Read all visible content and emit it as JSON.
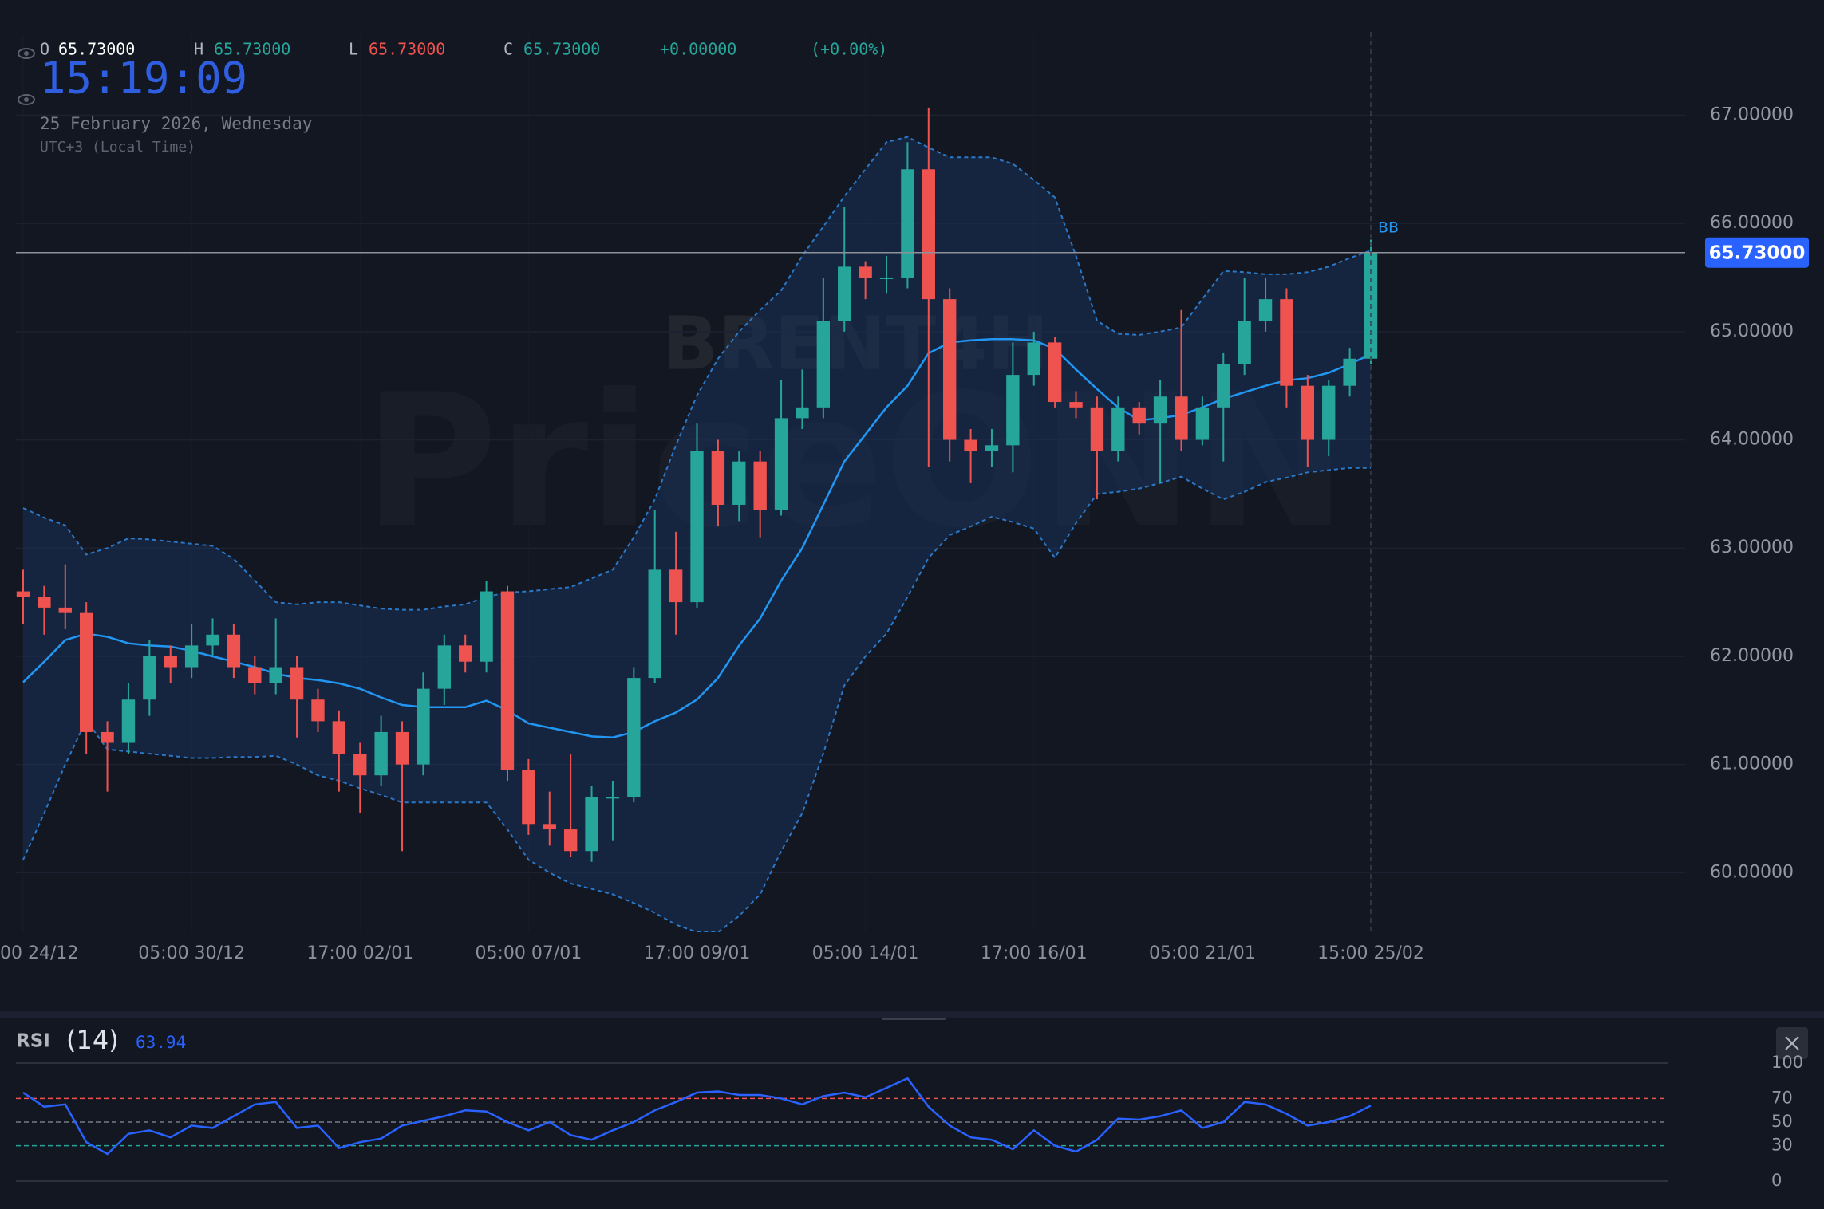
{
  "header": {
    "open_label": "O",
    "open": "65.73000",
    "high_label": "H",
    "high": "65.73000",
    "low_label": "L",
    "low": "65.73000",
    "close_label": "C",
    "close": "65.73000",
    "change": "+0.00000",
    "change_pct": "(+0.00%)",
    "time": "15:19:09",
    "date": "25 February 2026, Wednesday",
    "timezone": "UTC+3 (Local Time)"
  },
  "chart_data": [
    {
      "type": "candlestick",
      "watermark_symbol": "BRENT4H",
      "watermark_brand": "PriceONN",
      "categories": [
        "00 24/12",
        null,
        null,
        null,
        null,
        null,
        null,
        null,
        "05:00 30/12",
        null,
        null,
        null,
        null,
        null,
        null,
        null,
        "17:00 02/01",
        null,
        null,
        null,
        null,
        null,
        null,
        null,
        "05:00 07/01",
        null,
        null,
        null,
        null,
        null,
        null,
        null,
        "17:00 09/01",
        null,
        null,
        null,
        null,
        null,
        null,
        null,
        "05:00 14/01",
        null,
        null,
        null,
        null,
        null,
        null,
        null,
        "17:00 16/01",
        null,
        null,
        null,
        null,
        null,
        null,
        null,
        "05:00 21/01",
        null,
        null,
        null,
        null,
        null,
        null,
        null,
        "15:00 25/02"
      ],
      "open": [
        62.6,
        62.55,
        62.45,
        62.4,
        61.3,
        61.2,
        61.6,
        62.0,
        61.9,
        62.1,
        62.2,
        61.9,
        61.75,
        61.9,
        61.6,
        61.4,
        61.1,
        60.9,
        61.3,
        61.0,
        61.7,
        62.1,
        61.95,
        62.6,
        60.95,
        60.45,
        60.4,
        60.2,
        60.7,
        60.7,
        61.8,
        62.8,
        62.5,
        63.9,
        63.4,
        63.8,
        63.35,
        64.2,
        64.3,
        65.1,
        65.6,
        65.5,
        65.5,
        66.5,
        65.3,
        64.0,
        63.9,
        63.95,
        64.6,
        64.9,
        64.35,
        64.3,
        63.9,
        64.3,
        64.15,
        64.4,
        64.0,
        64.3,
        64.7,
        65.1,
        65.3,
        64.5,
        64.0,
        64.5,
        64.75
      ],
      "high": [
        62.8,
        62.65,
        62.85,
        62.5,
        61.4,
        61.75,
        62.15,
        62.1,
        62.3,
        62.35,
        62.3,
        62.0,
        62.35,
        62.0,
        61.7,
        61.5,
        61.2,
        61.45,
        61.4,
        61.85,
        62.2,
        62.2,
        62.7,
        62.65,
        61.05,
        60.75,
        61.1,
        60.8,
        60.85,
        61.9,
        63.35,
        63.15,
        64.15,
        64.0,
        63.9,
        63.9,
        64.55,
        64.65,
        65.5,
        66.15,
        65.65,
        65.7,
        66.75,
        67.07,
        65.4,
        64.1,
        64.1,
        64.9,
        65.0,
        64.95,
        64.45,
        64.4,
        64.4,
        64.35,
        64.55,
        65.2,
        64.4,
        64.8,
        65.5,
        65.5,
        65.4,
        64.6,
        64.55,
        64.85,
        65.85
      ],
      "low": [
        62.3,
        62.2,
        62.25,
        61.1,
        60.75,
        61.1,
        61.45,
        61.75,
        61.8,
        62.0,
        61.8,
        61.65,
        61.65,
        61.25,
        61.3,
        60.75,
        60.55,
        60.8,
        60.2,
        60.9,
        61.55,
        61.85,
        61.85,
        60.85,
        60.35,
        60.25,
        60.15,
        60.1,
        60.3,
        60.65,
        61.75,
        62.2,
        62.45,
        63.2,
        63.25,
        63.1,
        63.3,
        64.1,
        64.2,
        65.0,
        65.3,
        65.35,
        65.4,
        63.75,
        63.8,
        63.6,
        63.75,
        63.7,
        64.5,
        64.3,
        64.2,
        63.45,
        63.8,
        64.05,
        63.6,
        63.9,
        63.95,
        63.8,
        64.6,
        65.0,
        64.3,
        63.75,
        63.85,
        64.4,
        64.7
      ],
      "close": [
        62.55,
        62.45,
        62.4,
        61.3,
        61.2,
        61.6,
        62.0,
        61.9,
        62.1,
        62.2,
        61.9,
        61.75,
        61.9,
        61.6,
        61.4,
        61.1,
        60.9,
        61.3,
        61.0,
        61.7,
        62.1,
        61.95,
        62.6,
        60.95,
        60.45,
        60.4,
        60.2,
        60.7,
        60.7,
        61.8,
        62.8,
        62.5,
        63.9,
        63.4,
        63.8,
        63.35,
        64.2,
        64.3,
        65.1,
        65.6,
        65.5,
        65.5,
        66.5,
        65.3,
        64.0,
        63.9,
        63.95,
        64.6,
        64.9,
        64.35,
        64.3,
        63.9,
        64.3,
        64.15,
        64.4,
        64.0,
        64.3,
        64.7,
        65.1,
        65.3,
        64.5,
        64.0,
        64.5,
        64.75,
        65.73
      ],
      "up_color": "#26a69a",
      "down_color": "#ef5350",
      "bollinger": {
        "label": "BB",
        "color": "#2196f3",
        "band_color": "#2a78c8",
        "fill": "#1a3258",
        "middle": [
          61.76,
          61.95,
          62.15,
          62.21,
          62.18,
          62.12,
          62.1,
          62.09,
          62.05,
          62.0,
          61.95,
          61.9,
          61.84,
          61.8,
          61.78,
          61.75,
          61.7,
          61.62,
          61.55,
          61.53,
          61.53,
          61.53,
          61.59,
          61.5,
          61.38,
          61.34,
          61.3,
          61.26,
          61.25,
          61.3,
          61.4,
          61.48,
          61.6,
          61.8,
          62.1,
          62.35,
          62.7,
          63.0,
          63.4,
          63.8,
          64.05,
          64.3,
          64.5,
          64.8,
          64.9,
          64.92,
          64.93,
          64.93,
          64.92,
          64.84,
          64.65,
          64.47,
          64.3,
          64.18,
          64.2,
          64.23,
          64.3,
          64.38,
          64.44,
          64.5,
          64.55,
          64.57,
          64.62,
          64.7,
          64.79
        ],
        "upper": [
          63.37,
          63.28,
          63.21,
          62.94,
          63.0,
          63.09,
          63.08,
          63.06,
          63.04,
          63.02,
          62.9,
          62.7,
          62.5,
          62.48,
          62.5,
          62.5,
          62.47,
          62.44,
          62.43,
          62.43,
          62.46,
          62.48,
          62.55,
          62.59,
          62.6,
          62.62,
          62.64,
          62.72,
          62.8,
          63.1,
          63.45,
          63.95,
          64.41,
          64.75,
          65.0,
          65.2,
          65.38,
          65.7,
          65.97,
          66.25,
          66.5,
          66.75,
          66.8,
          66.7,
          66.61,
          66.61,
          66.61,
          66.55,
          66.4,
          66.24,
          65.7,
          65.1,
          64.98,
          64.97,
          65.0,
          65.04,
          65.3,
          65.56,
          65.55,
          65.53,
          65.53,
          65.55,
          65.6,
          65.68,
          65.75
        ],
        "lower": [
          60.12,
          60.55,
          61.0,
          61.41,
          61.14,
          61.12,
          61.1,
          61.08,
          61.06,
          61.06,
          61.07,
          61.07,
          61.08,
          61.0,
          60.9,
          60.85,
          60.78,
          60.72,
          60.65,
          60.65,
          60.65,
          60.65,
          60.65,
          60.4,
          60.12,
          60.0,
          59.9,
          59.85,
          59.8,
          59.72,
          59.63,
          59.52,
          59.45,
          59.45,
          59.6,
          59.8,
          60.2,
          60.55,
          61.1,
          61.73,
          62.0,
          62.21,
          62.55,
          62.91,
          63.12,
          63.2,
          63.29,
          63.24,
          63.18,
          62.91,
          63.23,
          63.5,
          63.52,
          63.55,
          63.6,
          63.66,
          63.55,
          63.45,
          63.52,
          63.61,
          63.65,
          63.7,
          63.72,
          63.74,
          63.74
        ]
      },
      "last_price": {
        "value": 65.73,
        "label": "65.73000",
        "color": "#2962ff"
      },
      "ylim": [
        59.45,
        67.74
      ],
      "yticks": [
        {
          "value": 60,
          "label": "60.00000"
        },
        {
          "value": 61,
          "label": "61.00000"
        },
        {
          "value": 62,
          "label": "62.00000"
        },
        {
          "value": 63,
          "label": "63.00000"
        },
        {
          "value": 64,
          "label": "64.00000"
        },
        {
          "value": 65,
          "label": "65.00000"
        },
        {
          "value": 66,
          "label": "66.00000"
        },
        {
          "value": 67,
          "label": "67.00000"
        }
      ],
      "grid": true
    },
    {
      "type": "line",
      "title": "RSI",
      "subtitle": "(14)",
      "series": [
        {
          "name": "RSI",
          "color": "#2962ff",
          "values": [
            75,
            63,
            65,
            33,
            23,
            40,
            43,
            37,
            47,
            45,
            55,
            65,
            67,
            45,
            47,
            28,
            33,
            36,
            47,
            51,
            55,
            60,
            59,
            50,
            43,
            50,
            39,
            35,
            43,
            50,
            60,
            67,
            75,
            76,
            73,
            73,
            70,
            65,
            72,
            75,
            71,
            79,
            87,
            63,
            47,
            37,
            35,
            27,
            43,
            30,
            25,
            35,
            53,
            52,
            55,
            60,
            45,
            50,
            67,
            65,
            57,
            47,
            50,
            55,
            63.94
          ]
        }
      ],
      "ylim": [
        0,
        100
      ],
      "yticks": [
        0,
        30,
        50,
        70,
        100
      ],
      "ytick_line_colors": [
        "#363a45",
        "#26a69a",
        "#787b86",
        "#ef5350",
        "#363a45"
      ],
      "ytick_line_dashed": [
        false,
        true,
        true,
        true,
        false
      ]
    }
  ]
}
